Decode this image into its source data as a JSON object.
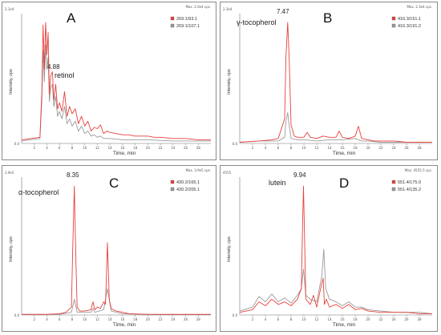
{
  "chart_data": [
    {
      "type": "line",
      "panel_letter": "A",
      "compound": "retinol",
      "peak_label": "4.88",
      "max_label": "Max. 2.0e4 cps.",
      "ymax_label": "2.1e4",
      "ylabel": "Intensity, cps",
      "xlabel": "Time, min",
      "xlim": [
        0,
        30
      ],
      "x_ticks": [
        "2",
        "4",
        "6",
        "8",
        "10",
        "12",
        "14",
        "16",
        "18",
        "20",
        "22",
        "24",
        "26",
        "28"
      ],
      "y_ticks": [
        "0.0"
      ],
      "legend": [
        "269.1/93.1",
        "269.1/107.1"
      ],
      "series": [
        {
          "name": "269.1/93.1",
          "color": "#e8413b",
          "x": [
            0,
            2.9,
            3.2,
            3.4,
            3.6,
            3.8,
            4.0,
            4.2,
            4.4,
            4.6,
            4.88,
            5.1,
            5.4,
            5.7,
            6.0,
            6.4,
            6.8,
            7.2,
            7.6,
            8.0,
            8.5,
            9.0,
            9.5,
            10,
            10.5,
            11,
            11.5,
            12,
            12.5,
            13,
            13.5,
            14,
            15,
            16,
            17,
            18,
            19,
            20,
            21,
            22,
            24,
            26,
            28,
            30
          ],
          "y": [
            0.03,
            0.05,
            0.42,
            0.96,
            0.6,
            0.98,
            0.72,
            0.9,
            0.4,
            0.55,
            0.58,
            0.35,
            0.48,
            0.28,
            0.33,
            0.26,
            0.42,
            0.22,
            0.3,
            0.24,
            0.28,
            0.16,
            0.22,
            0.14,
            0.18,
            0.1,
            0.13,
            0.12,
            0.15,
            0.08,
            0.1,
            0.09,
            0.08,
            0.07,
            0.07,
            0.06,
            0.06,
            0.06,
            0.05,
            0.05,
            0.04,
            0.04,
            0.03,
            0.03
          ]
        },
        {
          "name": "269.1/107.1",
          "color": "#9a9a9a",
          "x": [
            0,
            2.9,
            3.2,
            3.4,
            3.6,
            3.8,
            4.0,
            4.2,
            4.4,
            4.6,
            4.88,
            5.1,
            5.4,
            5.7,
            6.0,
            6.4,
            6.8,
            7.2,
            7.6,
            8.0,
            8.5,
            9.0,
            9.5,
            10,
            10.5,
            11,
            11.5,
            12,
            12.5,
            13,
            14,
            16,
            18,
            20,
            24,
            30
          ],
          "y": [
            0.02,
            0.04,
            0.35,
            0.75,
            0.5,
            0.8,
            0.6,
            0.7,
            0.34,
            0.45,
            0.48,
            0.3,
            0.38,
            0.22,
            0.26,
            0.2,
            0.3,
            0.16,
            0.2,
            0.14,
            0.18,
            0.1,
            0.14,
            0.08,
            0.1,
            0.06,
            0.07,
            0.05,
            0.06,
            0.04,
            0.04,
            0.03,
            0.03,
            0.03,
            0.02,
            0.02
          ]
        }
      ]
    },
    {
      "type": "line",
      "panel_letter": "B",
      "compound": "γ-tocopherol",
      "peak_label": "7.47",
      "max_label": "Max. 2.3e4 cps.",
      "ymax_label": "2.3e4",
      "ylabel": "Intensity, cps",
      "xlabel": "Time, min",
      "xlim": [
        0,
        30
      ],
      "x_ticks": [
        "2",
        "4",
        "6",
        "8",
        "10",
        "12",
        "14",
        "16",
        "18",
        "20",
        "22",
        "24",
        "26",
        "28"
      ],
      "y_ticks": [
        "0.0"
      ],
      "legend": [
        "416.3/151.1",
        "416.3/191.2"
      ],
      "series": [
        {
          "name": "416.3/151.1",
          "color": "#e8413b",
          "x": [
            0,
            3,
            5,
            6,
            7.0,
            7.2,
            7.47,
            7.7,
            8.0,
            8.5,
            9,
            10,
            10.5,
            11,
            12,
            13,
            14,
            15,
            15.5,
            16,
            17,
            18,
            18.5,
            19,
            20,
            21,
            22,
            24,
            26,
            28,
            30
          ],
          "y": [
            0.01,
            0.02,
            0.03,
            0.04,
            0.2,
            0.7,
            0.98,
            0.7,
            0.15,
            0.06,
            0.05,
            0.05,
            0.09,
            0.05,
            0.04,
            0.06,
            0.05,
            0.05,
            0.1,
            0.05,
            0.04,
            0.06,
            0.14,
            0.04,
            0.03,
            0.02,
            0.02,
            0.02,
            0.01,
            0.01,
            0.01
          ]
        },
        {
          "name": "416.3/191.2",
          "color": "#9a9a9a",
          "x": [
            0,
            3,
            5,
            6,
            7.0,
            7.2,
            7.47,
            7.7,
            8.0,
            9,
            10,
            12,
            14,
            16,
            18,
            19,
            20,
            22,
            24,
            26,
            28,
            30
          ],
          "y": [
            0.01,
            0.02,
            0.02,
            0.02,
            0.05,
            0.18,
            0.25,
            0.15,
            0.04,
            0.03,
            0.03,
            0.02,
            0.03,
            0.03,
            0.04,
            0.02,
            0.02,
            0.01,
            0.01,
            0.01,
            0.01,
            0.01
          ]
        }
      ]
    },
    {
      "type": "line",
      "panel_letter": "C",
      "compound": "α-tocopherol",
      "peak_label": "8.35",
      "max_label": "Max. 3.9e5 cps.",
      "ymax_label": "3.9e5",
      "ylabel": "Intensity, cps",
      "xlabel": "Time, min",
      "xlim": [
        0,
        30
      ],
      "x_ticks": [
        "2",
        "4",
        "6",
        "8",
        "10",
        "12",
        "14",
        "16",
        "18",
        "20",
        "22",
        "24",
        "26",
        "28"
      ],
      "y_ticks": [
        "0.0"
      ],
      "legend": [
        "430.2/165.1",
        "430.2/205.1"
      ],
      "series": [
        {
          "name": "430.2/165.1",
          "color": "#e8413b",
          "x": [
            0,
            4,
            6,
            7,
            7.9,
            8.1,
            8.35,
            8.6,
            8.8,
            9.2,
            10,
            11,
            11.3,
            11.6,
            12,
            12.5,
            13,
            13.3,
            13.6,
            13.9,
            14.2,
            14.5,
            15,
            16,
            17,
            20,
            24,
            28,
            30
          ],
          "y": [
            0.005,
            0.005,
            0.01,
            0.02,
            0.06,
            0.5,
            0.98,
            0.4,
            0.06,
            0.03,
            0.03,
            0.04,
            0.1,
            0.04,
            0.06,
            0.05,
            0.1,
            0.08,
            0.55,
            0.12,
            0.05,
            0.04,
            0.03,
            0.02,
            0.01,
            0.005,
            0.005,
            0.005,
            0.005
          ]
        },
        {
          "name": "430.2/205.1",
          "color": "#9a9a9a",
          "x": [
            0,
            6,
            7.9,
            8.35,
            8.8,
            11,
            11.3,
            11.6,
            13,
            13.6,
            14.2,
            16,
            20,
            30
          ],
          "y": [
            0.003,
            0.005,
            0.02,
            0.12,
            0.02,
            0.02,
            0.05,
            0.02,
            0.04,
            0.2,
            0.03,
            0.01,
            0.003,
            0.003
          ]
        }
      ]
    },
    {
      "type": "line",
      "panel_letter": "D",
      "compound": "lutein",
      "peak_label": "9.94",
      "max_label": "Max. 4555.5 cps.",
      "ymax_label": "4555",
      "ylabel": "Intensity, cps",
      "xlabel": "Time, min",
      "xlim": [
        0,
        30
      ],
      "x_ticks": [
        "2",
        "4",
        "6",
        "8",
        "10",
        "12",
        "14",
        "16",
        "18",
        "20",
        "22",
        "24",
        "26",
        "28"
      ],
      "y_ticks": [
        "0.0"
      ],
      "legend": [
        "551.4/175.0",
        "551.4/135.2"
      ],
      "series": [
        {
          "name": "551.4/175.0",
          "color": "#e8413b",
          "x": [
            0,
            2,
            3,
            4,
            5,
            6,
            7,
            8,
            9,
            9.6,
            9.8,
            9.94,
            10.1,
            10.3,
            11,
            11.5,
            12,
            12.6,
            13.0,
            13.2,
            13.5,
            14,
            15,
            16,
            17,
            18,
            19,
            20,
            22,
            24,
            26,
            28,
            30
          ],
          "y": [
            0.02,
            0.04,
            0.1,
            0.07,
            0.12,
            0.08,
            0.1,
            0.07,
            0.12,
            0.2,
            0.7,
            0.98,
            0.6,
            0.12,
            0.08,
            0.15,
            0.06,
            0.2,
            0.28,
            0.08,
            0.12,
            0.06,
            0.08,
            0.05,
            0.08,
            0.04,
            0.05,
            0.03,
            0.02,
            0.02,
            0.02,
            0.01,
            0.01
          ]
        },
        {
          "name": "551.4/135.2",
          "color": "#9a9a9a",
          "x": [
            0,
            2,
            3,
            4,
            5,
            6,
            7,
            8,
            9,
            9.6,
            9.94,
            10.3,
            11,
            12,
            12.8,
            13.1,
            13.4,
            14,
            15,
            16,
            17,
            18,
            19,
            20,
            22,
            24,
            26,
            28,
            30
          ],
          "y": [
            0.03,
            0.06,
            0.14,
            0.1,
            0.16,
            0.1,
            0.13,
            0.09,
            0.15,
            0.2,
            0.35,
            0.15,
            0.12,
            0.1,
            0.3,
            0.5,
            0.2,
            0.12,
            0.1,
            0.07,
            0.1,
            0.06,
            0.06,
            0.04,
            0.03,
            0.02,
            0.02,
            0.02,
            0.01
          ]
        }
      ]
    }
  ]
}
